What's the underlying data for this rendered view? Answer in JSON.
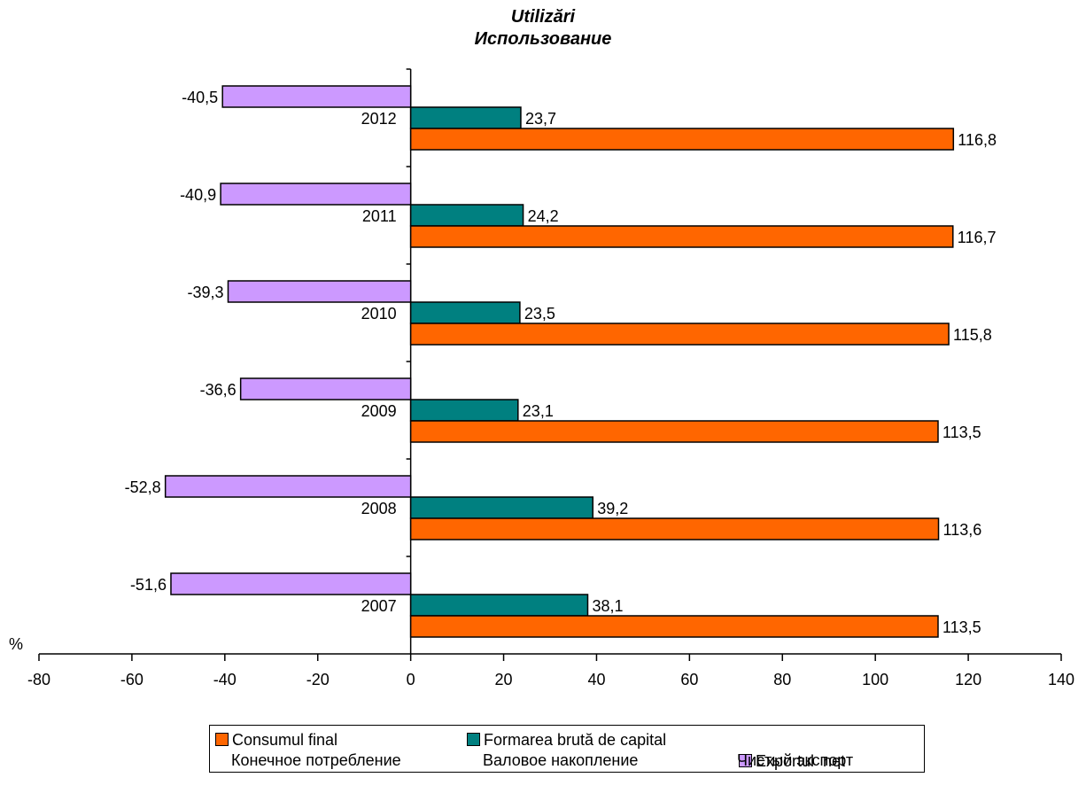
{
  "chart_data": {
    "type": "bar",
    "orientation": "horizontal",
    "title": "Utilizări",
    "subtitle": "Использование",
    "xlabel": "%",
    "xlim": [
      -80,
      140
    ],
    "x_ticks": [
      "-80",
      "-60",
      "-40",
      "-20",
      "0",
      "20",
      "40",
      "60",
      "80",
      "100",
      "120",
      "140"
    ],
    "categories": [
      "2007",
      "2008",
      "2009",
      "2010",
      "2011",
      "2012"
    ],
    "series": [
      {
        "name": "Consumul final",
        "name_ru": "Конечное потребление",
        "color": "#FF6600",
        "values": [
          113.5,
          113.6,
          113.5,
          115.8,
          116.7,
          116.8
        ],
        "labels": [
          "113,5",
          "113,6",
          "113,5",
          "115,8",
          "116,7",
          "116,8"
        ]
      },
      {
        "name": "Formarea brută de capital",
        "name_ru": "Валовое накопление",
        "color": "#008080",
        "values": [
          38.1,
          39.2,
          23.1,
          23.5,
          24.2,
          23.7
        ],
        "labels": [
          "38,1",
          "39,2",
          "23,1",
          "23,5",
          "24,2",
          "23,7"
        ]
      },
      {
        "name": "Exportul  net",
        "name_ru": "Чистый экспорт",
        "color": "#CC99FF",
        "values": [
          -51.6,
          -52.8,
          -36.6,
          -39.3,
          -40.9,
          -40.5
        ],
        "labels": [
          "-51,6",
          "-52,8",
          "-36,6",
          "-39,3",
          "-40,9",
          "-40,5"
        ]
      }
    ],
    "legend_position": "bottom",
    "grid": false
  }
}
